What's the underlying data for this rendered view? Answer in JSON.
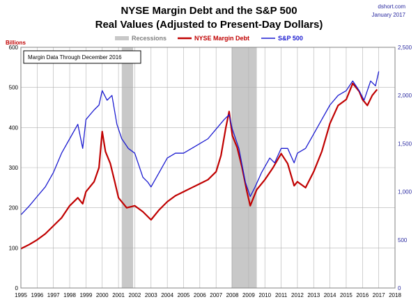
{
  "colors": {
    "margin_debt": "#c00000",
    "sp500": "#1a1ad0",
    "recession": "#c8c8c8",
    "grid": "#b0b0b0",
    "axis_right_text": "#2a2aa0"
  },
  "source": {
    "site": "dshort.com",
    "date": "January 2017"
  },
  "chart_data": {
    "type": "line",
    "title": "NYSE Margin Debt and the S&P 500",
    "subtitle": "Real Values (Adjusted to Present-Day Dollars)",
    "ylabel_left": "Billions",
    "annotation": "Margin Data Through December 2016",
    "legend": [
      {
        "name": "Recessions",
        "kind": "band"
      },
      {
        "name": "NYSE Margin Debt",
        "kind": "line"
      },
      {
        "name": "S&P 500",
        "kind": "line"
      }
    ],
    "x_range": [
      1995,
      2018
    ],
    "x_ticks": [
      "1995",
      "1996",
      "1997",
      "1998",
      "1999",
      "2000",
      "2001",
      "2002",
      "2003",
      "2004",
      "2005",
      "2006",
      "2007",
      "2008",
      "2009",
      "2010",
      "2011",
      "2012",
      "2013",
      "2014",
      "2015",
      "2016",
      "2017",
      "2018"
    ],
    "y_left_range": [
      0,
      600
    ],
    "y_left_ticks": [
      "0",
      "100",
      "200",
      "300",
      "400",
      "500",
      "600"
    ],
    "y_right_range": [
      0,
      2500
    ],
    "y_right_ticks": [
      "0",
      "500",
      "1,000",
      "1,500",
      "2,000",
      "2,500"
    ],
    "recessions": [
      [
        2001.2,
        2001.9
      ],
      [
        2007.95,
        2009.5
      ]
    ],
    "series": [
      {
        "name": "NYSE Margin Debt",
        "axis": "left",
        "x": [
          1995.0,
          1995.5,
          1996.0,
          1996.5,
          1997.0,
          1997.5,
          1998.0,
          1998.5,
          1998.8,
          1999.0,
          1999.5,
          1999.8,
          2000.0,
          2000.2,
          2000.5,
          2000.8,
          2001.0,
          2001.5,
          2002.0,
          2002.5,
          2003.0,
          2003.5,
          2004.0,
          2004.5,
          2005.0,
          2005.5,
          2006.0,
          2006.5,
          2007.0,
          2007.3,
          2007.6,
          2007.8,
          2008.0,
          2008.3,
          2008.6,
          2008.9,
          2009.1,
          2009.5,
          2010.0,
          2010.5,
          2011.0,
          2011.4,
          2011.8,
          2012.0,
          2012.5,
          2013.0,
          2013.5,
          2014.0,
          2014.5,
          2015.0,
          2015.4,
          2015.8,
          2016.0,
          2016.3,
          2016.6,
          2016.9
        ],
        "values": [
          98,
          108,
          120,
          135,
          155,
          175,
          205,
          225,
          210,
          240,
          265,
          300,
          390,
          340,
          310,
          260,
          225,
          200,
          205,
          190,
          170,
          195,
          215,
          230,
          240,
          250,
          260,
          270,
          290,
          330,
          400,
          440,
          380,
          350,
          300,
          240,
          205,
          245,
          270,
          300,
          335,
          310,
          255,
          265,
          250,
          290,
          340,
          410,
          455,
          470,
          510,
          490,
          470,
          455,
          480,
          495
        ]
      },
      {
        "name": "S&P 500",
        "axis": "right",
        "x": [
          1995.0,
          1995.5,
          1996.0,
          1996.5,
          1997.0,
          1997.5,
          1998.0,
          1998.5,
          1998.8,
          1999.0,
          1999.5,
          1999.8,
          2000.0,
          2000.3,
          2000.6,
          2000.9,
          2001.2,
          2001.6,
          2002.0,
          2002.5,
          2002.8,
          2003.0,
          2003.5,
          2004.0,
          2004.5,
          2005.0,
          2005.5,
          2006.0,
          2006.5,
          2007.0,
          2007.5,
          2007.8,
          2008.0,
          2008.4,
          2008.8,
          2009.1,
          2009.4,
          2009.8,
          2010.3,
          2010.6,
          2011.0,
          2011.4,
          2011.8,
          2012.0,
          2012.5,
          2013.0,
          2013.5,
          2014.0,
          2014.5,
          2015.0,
          2015.4,
          2015.8,
          2016.1,
          2016.5,
          2016.8,
          2017.0
        ],
        "values": [
          760,
          850,
          950,
          1050,
          1200,
          1400,
          1550,
          1700,
          1450,
          1750,
          1850,
          1900,
          2050,
          1950,
          2000,
          1700,
          1550,
          1450,
          1400,
          1150,
          1100,
          1050,
          1200,
          1350,
          1400,
          1400,
          1450,
          1500,
          1550,
          1650,
          1750,
          1800,
          1650,
          1450,
          1100,
          950,
          1050,
          1200,
          1350,
          1300,
          1450,
          1450,
          1300,
          1400,
          1450,
          1600,
          1750,
          1900,
          2000,
          2050,
          2150,
          2050,
          1950,
          2150,
          2100,
          2250
        ]
      }
    ]
  }
}
